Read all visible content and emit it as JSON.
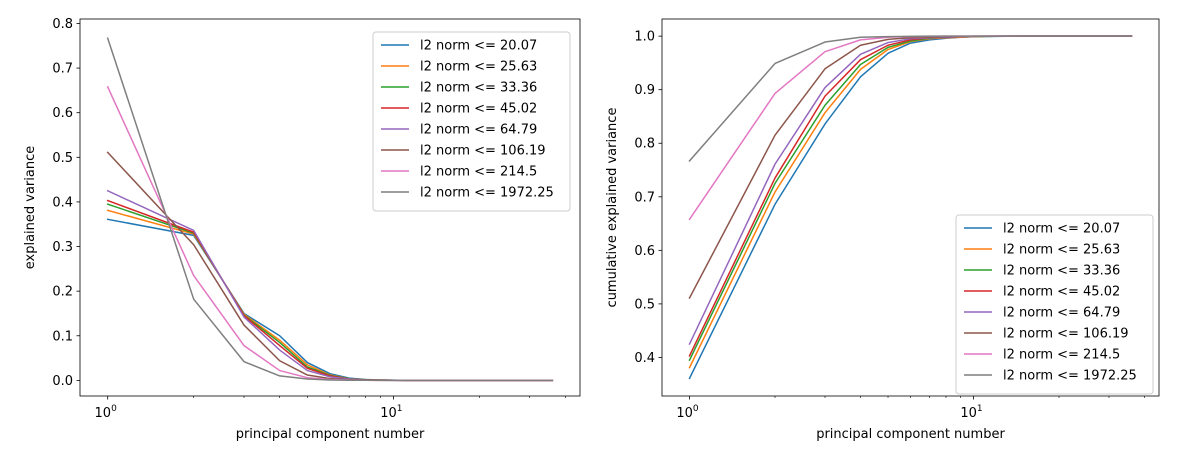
{
  "chart_data": [
    {
      "type": "line",
      "xscale": "log",
      "xlabel": "principal component number",
      "ylabel": "explained variance",
      "xlim": [
        0.8,
        45
      ],
      "ylim": [
        -0.035,
        0.81
      ],
      "yticks": [
        0.0,
        0.1,
        0.2,
        0.3,
        0.4,
        0.5,
        0.6,
        0.7,
        0.8
      ],
      "ytick_labels": [
        "0.0",
        "0.1",
        "0.2",
        "0.3",
        "0.4",
        "0.5",
        "0.6",
        "0.7",
        "0.8"
      ],
      "xticks": [
        {
          "value": 1,
          "base": "10",
          "exp": "0"
        },
        {
          "value": 10,
          "base": "10",
          "exp": "1"
        }
      ],
      "legend_position": "top-right",
      "x": [
        1,
        2,
        3,
        4,
        5,
        6,
        7,
        8,
        9,
        10,
        11,
        12,
        13,
        14,
        15,
        16,
        17,
        18,
        19,
        20,
        21,
        22,
        23,
        24,
        25,
        26,
        27,
        28,
        29,
        30,
        31,
        32,
        33,
        34,
        35,
        36
      ],
      "series": [
        {
          "name": "l2 norm <= 20.07",
          "color": "#1f77b4",
          "values": [
            0.361,
            0.325,
            0.15,
            0.1,
            0.04,
            0.015,
            0.005,
            0.002,
            0.001,
            0.0005,
            0,
            0,
            0,
            0,
            0,
            0,
            0,
            0,
            0,
            0,
            0,
            0,
            0,
            0,
            0,
            0,
            0,
            0,
            0,
            0,
            0,
            0,
            0,
            0,
            0,
            0
          ]
        },
        {
          "name": "l2 norm <= 25.63",
          "color": "#ff7f0e",
          "values": [
            0.381,
            0.328,
            0.148,
            0.09,
            0.035,
            0.012,
            0.004,
            0.0015,
            0.0008,
            0.0004,
            0,
            0,
            0,
            0,
            0,
            0,
            0,
            0,
            0,
            0,
            0,
            0,
            0,
            0,
            0,
            0,
            0,
            0,
            0,
            0,
            0,
            0,
            0,
            0,
            0,
            0
          ]
        },
        {
          "name": "l2 norm <= 33.36",
          "color": "#2ca02c",
          "values": [
            0.395,
            0.33,
            0.146,
            0.085,
            0.03,
            0.011,
            0.004,
            0.0015,
            0.0008,
            0.0004,
            0,
            0,
            0,
            0,
            0,
            0,
            0,
            0,
            0,
            0,
            0,
            0,
            0,
            0,
            0,
            0,
            0,
            0,
            0,
            0,
            0,
            0,
            0,
            0,
            0,
            0
          ]
        },
        {
          "name": "l2 norm <= 45.02",
          "color": "#d62728",
          "values": [
            0.403,
            0.332,
            0.145,
            0.078,
            0.027,
            0.01,
            0.003,
            0.0012,
            0.0006,
            0.0003,
            0,
            0,
            0,
            0,
            0,
            0,
            0,
            0,
            0,
            0,
            0,
            0,
            0,
            0,
            0,
            0,
            0,
            0,
            0,
            0,
            0,
            0,
            0,
            0,
            0,
            0
          ]
        },
        {
          "name": "l2 norm <= 64.79",
          "color": "#9467bd",
          "values": [
            0.425,
            0.336,
            0.142,
            0.068,
            0.022,
            0.008,
            0.003,
            0.001,
            0.0005,
            0.0002,
            0,
            0,
            0,
            0,
            0,
            0,
            0,
            0,
            0,
            0,
            0,
            0,
            0,
            0,
            0,
            0,
            0,
            0,
            0,
            0,
            0,
            0,
            0,
            0,
            0,
            0
          ]
        },
        {
          "name": "l2 norm <= 106.19",
          "color": "#8c564b",
          "values": [
            0.511,
            0.304,
            0.124,
            0.044,
            0.012,
            0.004,
            0.0015,
            0.0006,
            0.0003,
            0.0001,
            0,
            0,
            0,
            0,
            0,
            0,
            0,
            0,
            0,
            0,
            0,
            0,
            0,
            0,
            0,
            0,
            0,
            0,
            0,
            0,
            0,
            0,
            0,
            0,
            0,
            0
          ]
        },
        {
          "name": "l2 norm <= 214.5",
          "color": "#e377c2",
          "values": [
            0.658,
            0.235,
            0.078,
            0.022,
            0.006,
            0.002,
            0.0008,
            0.0003,
            0.0001,
            0,
            0,
            0,
            0,
            0,
            0,
            0,
            0,
            0,
            0,
            0,
            0,
            0,
            0,
            0,
            0,
            0,
            0,
            0,
            0,
            0,
            0,
            0,
            0,
            0,
            0,
            0
          ]
        },
        {
          "name": "l2 norm <= 1972.25",
          "color": "#7f7f7f",
          "values": [
            0.767,
            0.182,
            0.042,
            0.01,
            0.003,
            0.001,
            0.0004,
            0.0002,
            0.0001,
            0,
            0,
            0,
            0,
            0,
            0,
            0,
            0,
            0,
            0,
            0,
            0,
            0,
            0,
            0,
            0,
            0,
            0,
            0,
            0,
            0,
            0,
            0,
            0,
            0,
            0,
            0
          ]
        }
      ]
    },
    {
      "type": "line",
      "xscale": "log",
      "xlabel": "principal component number",
      "ylabel": "cumulative explained variance",
      "xlim": [
        0.8,
        45
      ],
      "ylim": [
        0.328,
        1.032
      ],
      "yticks": [
        0.4,
        0.5,
        0.6,
        0.7,
        0.8,
        0.9,
        1.0
      ],
      "ytick_labels": [
        "0.4",
        "0.5",
        "0.6",
        "0.7",
        "0.8",
        "0.9",
        "1.0"
      ],
      "xticks": [
        {
          "value": 1,
          "base": "10",
          "exp": "0"
        },
        {
          "value": 10,
          "base": "10",
          "exp": "1"
        }
      ],
      "legend_position": "lower-right",
      "x": [
        1,
        2,
        3,
        4,
        5,
        6,
        7,
        8,
        9,
        10,
        11,
        12,
        13,
        14,
        15,
        16,
        17,
        18,
        19,
        20,
        21,
        22,
        23,
        24,
        25,
        26,
        27,
        28,
        29,
        30,
        31,
        32,
        33,
        34,
        35,
        36
      ],
      "series": [
        {
          "name": "l2 norm <= 20.07",
          "color": "#1f77b4",
          "values": [
            0.361,
            0.686,
            0.836,
            0.924,
            0.968,
            0.987,
            0.993,
            0.996,
            0.998,
            0.999,
            0.9993,
            0.9995,
            0.9997,
            0.9998,
            1,
            1,
            1,
            1,
            1,
            1,
            1,
            1,
            1,
            1,
            1,
            1,
            1,
            1,
            1,
            1,
            1,
            1,
            1,
            1,
            1,
            1
          ]
        },
        {
          "name": "l2 norm <= 25.63",
          "color": "#ff7f0e",
          "values": [
            0.381,
            0.709,
            0.857,
            0.938,
            0.975,
            0.99,
            0.995,
            0.997,
            0.998,
            0.999,
            0.9995,
            0.9997,
            0.9998,
            1,
            1,
            1,
            1,
            1,
            1,
            1,
            1,
            1,
            1,
            1,
            1,
            1,
            1,
            1,
            1,
            1,
            1,
            1,
            1,
            1,
            1,
            1
          ]
        },
        {
          "name": "l2 norm <= 33.36",
          "color": "#2ca02c",
          "values": [
            0.395,
            0.725,
            0.871,
            0.947,
            0.979,
            0.991,
            0.996,
            0.998,
            0.999,
            0.9993,
            0.9996,
            0.9998,
            1,
            1,
            1,
            1,
            1,
            1,
            1,
            1,
            1,
            1,
            1,
            1,
            1,
            1,
            1,
            1,
            1,
            1,
            1,
            1,
            1,
            1,
            1,
            1
          ]
        },
        {
          "name": "l2 norm <= 45.02",
          "color": "#d62728",
          "values": [
            0.403,
            0.735,
            0.888,
            0.956,
            0.983,
            0.993,
            0.997,
            0.998,
            0.999,
            0.9995,
            0.9997,
            1,
            1,
            1,
            1,
            1,
            1,
            1,
            1,
            1,
            1,
            1,
            1,
            1,
            1,
            1,
            1,
            1,
            1,
            1,
            1,
            1,
            1,
            1,
            1,
            1
          ]
        },
        {
          "name": "l2 norm <= 64.79",
          "color": "#9467bd",
          "values": [
            0.425,
            0.761,
            0.904,
            0.966,
            0.988,
            0.995,
            0.997,
            0.998,
            0.999,
            0.9995,
            1,
            1,
            1,
            1,
            1,
            1,
            1,
            1,
            1,
            1,
            1,
            1,
            1,
            1,
            1,
            1,
            1,
            1,
            1,
            1,
            1,
            1,
            1,
            1,
            1,
            1
          ]
        },
        {
          "name": "l2 norm <= 106.19",
          "color": "#8c564b",
          "values": [
            0.511,
            0.815,
            0.939,
            0.983,
            0.994,
            0.997,
            0.998,
            0.999,
            0.9995,
            1,
            1,
            1,
            1,
            1,
            1,
            1,
            1,
            1,
            1,
            1,
            1,
            1,
            1,
            1,
            1,
            1,
            1,
            1,
            1,
            1,
            1,
            1,
            1,
            1,
            1,
            1
          ]
        },
        {
          "name": "l2 norm <= 214.5",
          "color": "#e377c2",
          "values": [
            0.658,
            0.893,
            0.971,
            0.993,
            0.998,
            0.999,
            0.9995,
            1,
            1,
            1,
            1,
            1,
            1,
            1,
            1,
            1,
            1,
            1,
            1,
            1,
            1,
            1,
            1,
            1,
            1,
            1,
            1,
            1,
            1,
            1,
            1,
            1,
            1,
            1,
            1,
            1
          ]
        },
        {
          "name": "l2 norm <= 1972.25",
          "color": "#7f7f7f",
          "values": [
            0.767,
            0.949,
            0.989,
            0.998,
            0.999,
            0.9995,
            1,
            1,
            1,
            1,
            1,
            1,
            1,
            1,
            1,
            1,
            1,
            1,
            1,
            1,
            1,
            1,
            1,
            1,
            1,
            1,
            1,
            1,
            1,
            1,
            1,
            1,
            1,
            1,
            1,
            1
          ]
        }
      ]
    }
  ]
}
